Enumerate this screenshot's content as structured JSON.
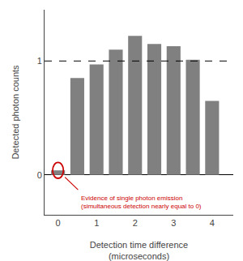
{
  "chart_data": {
    "type": "bar",
    "x": [
      0,
      0.5,
      1.0,
      1.5,
      2.0,
      2.5,
      3.0,
      3.5,
      4.0
    ],
    "values": [
      0.04,
      0.85,
      0.97,
      1.1,
      1.22,
      1.15,
      1.13,
      1.01,
      0.65
    ],
    "color": "#808080",
    "xlabel": "Detection time difference\n(microseconds)",
    "ylabel": "Detected photon counts",
    "reference_line_y": 1.0,
    "xlim": [
      -0.35,
      4.55
    ],
    "xticks": [
      0,
      1,
      2,
      3,
      4
    ],
    "ylim": [
      -0.35,
      1.45
    ],
    "yticks": [
      0,
      1
    ],
    "grid": false,
    "annotation": {
      "text": "Evidence of single photon emission\n(simultaneous detection nearly equal to 0)",
      "x": 0.0,
      "y": 0.04,
      "color": "#cc0000"
    }
  }
}
